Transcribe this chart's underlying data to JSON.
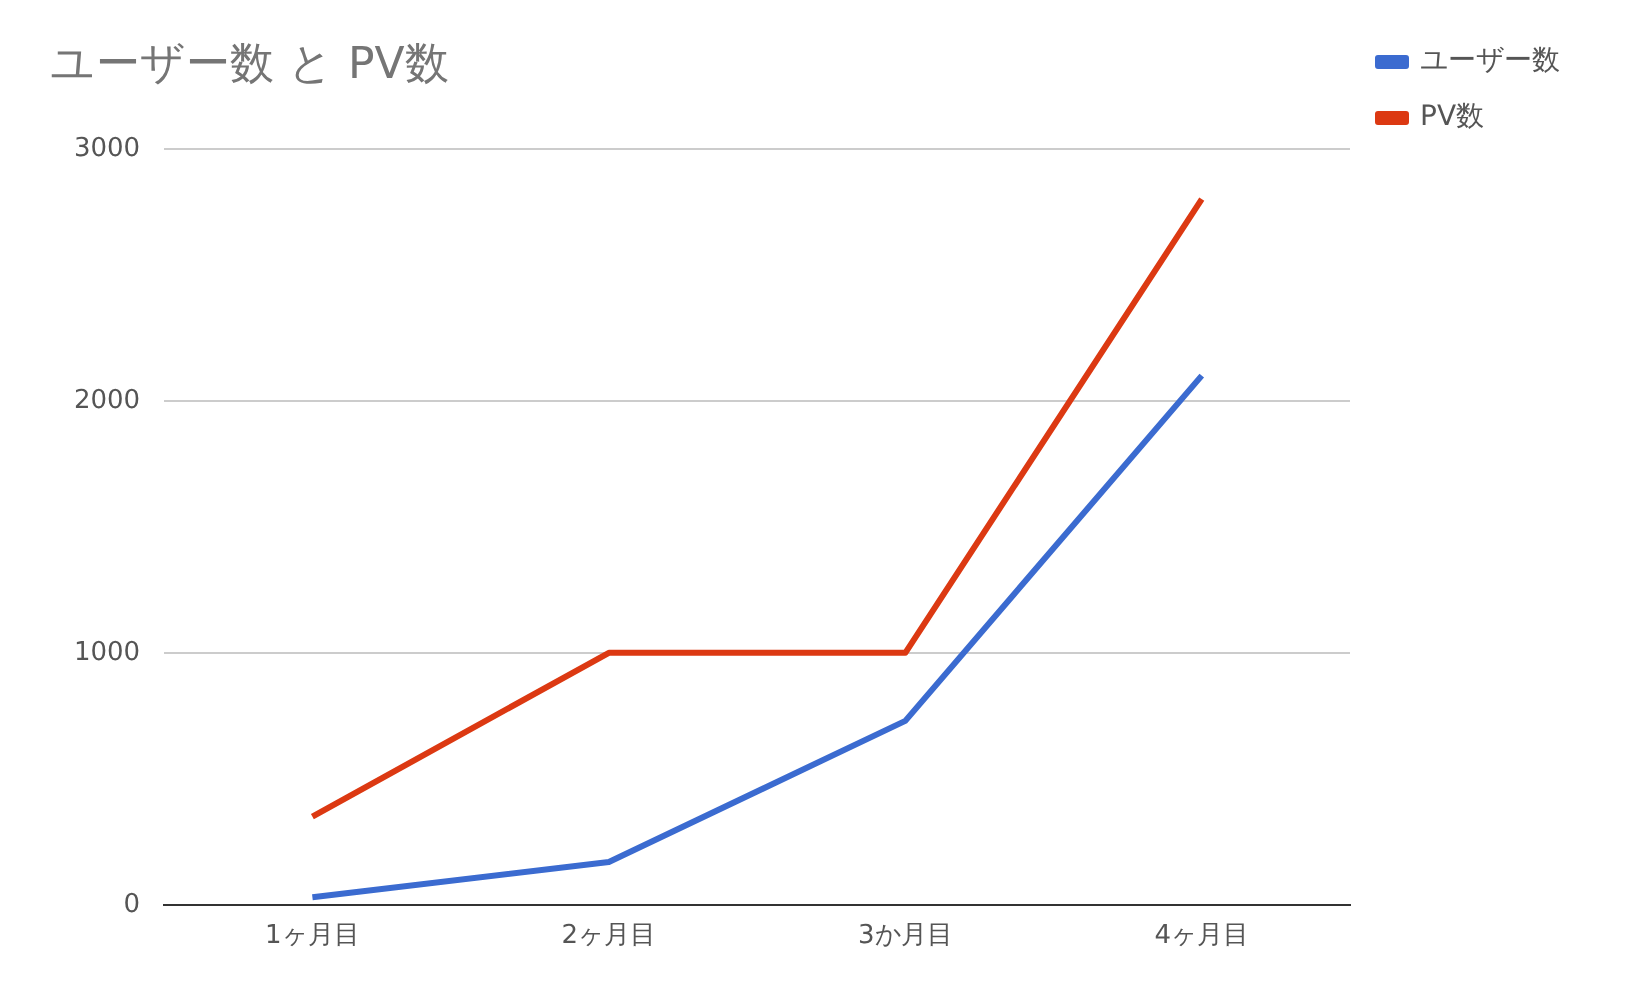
{
  "chart_data": {
    "type": "line",
    "title": "ユーザー数 と PV数",
    "categories": [
      "1ヶ月目",
      "2ヶ月目",
      "3か月目",
      "4ヶ月目"
    ],
    "series": [
      {
        "name": "ユーザー数",
        "color": "#3b6bd0",
        "values": [
          30,
          170,
          730,
          2100
        ]
      },
      {
        "name": "PV数",
        "color": "#dc3912",
        "values": [
          350,
          1000,
          1000,
          2800
        ]
      }
    ],
    "ylim": [
      0,
      3000
    ],
    "yticks": [
      0,
      1000,
      2000,
      3000
    ],
    "grid": "y",
    "legend": "top right",
    "marker": "none"
  }
}
